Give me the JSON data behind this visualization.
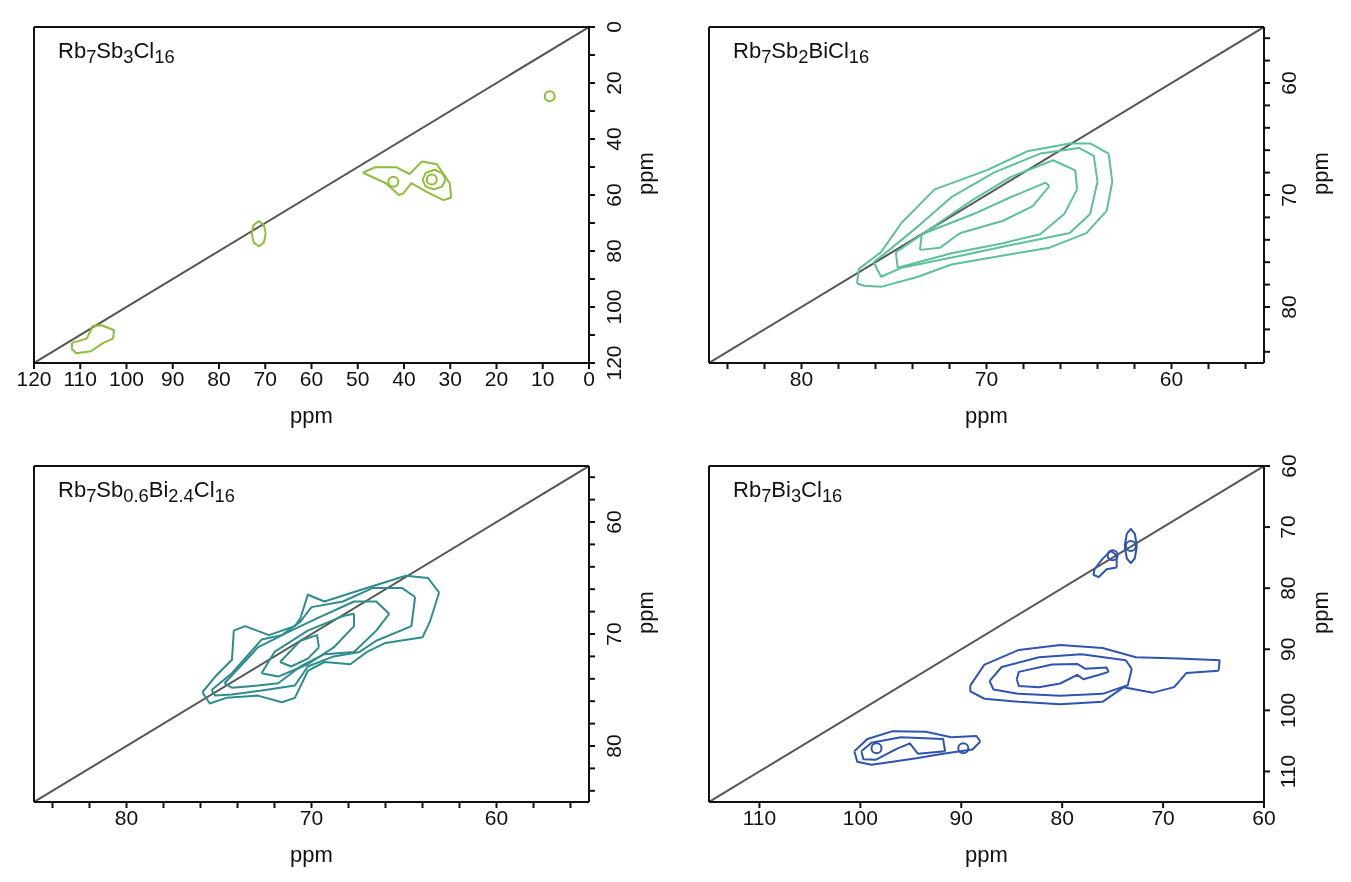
{
  "chart_data": [
    {
      "type": "line",
      "title": "Rb$_{7}$Sb$_{3}$Cl$_{16}$",
      "xlabel": "ppm",
      "ylabel": "ppm",
      "marker": "none",
      "line_style": "solid",
      "xlim": [
        120,
        0
      ],
      "ylim": [
        120,
        0
      ],
      "xticks": [
        120,
        110,
        100,
        90,
        80,
        70,
        60,
        50,
        40,
        30,
        20,
        10,
        0
      ],
      "yticks": [
        0,
        {
          "value": 10,
          "label": null
        },
        20,
        {
          "value": 30,
          "label": null
        },
        40,
        {
          "value": 50,
          "label": null
        },
        60,
        {
          "value": 70,
          "label": null
        },
        80,
        {
          "value": 90,
          "label": null
        },
        100,
        {
          "value": 110,
          "label": null
        },
        120
      ],
      "series": [
        {
          "color": "#555555",
          "x": [
            120,
            0
          ],
          "values": [
            120,
            0
          ]
        },
        {
          "type": "scatter",
          "marker": "circle",
          "color": "#8cbe3c",
          "x": [
            8.5,
            34,
            42.3
          ],
          "values": [
            24.7,
            54.5,
            55.3
          ]
        },
        {
          "color": "#8cbe3c",
          "x": [
            72.9,
            72.5,
            71.4,
            70.3,
            69.9,
            null,
            69.9,
            70.3,
            71.4,
            72.5,
            72.9
          ],
          "values": [
            73.8,
            77,
            78.3,
            77,
            73.8,
            null,
            73.8,
            70.7,
            69.3,
            70.7,
            73.8
          ]
        },
        {
          "color": "#8cbe3c",
          "x": [
            48.9,
            46.2,
            41.6,
            38.8,
            36.1,
            32.9,
            30.1,
            29.8,
            null,
            29.8,
            31.5,
            35.2,
            38.4,
            40.2,
            41.1,
            43.9,
            48.9
          ],
          "values": [
            52,
            50.1,
            50.1,
            52.5,
            48,
            49,
            55.8,
            61,
            null,
            61,
            61.8,
            58.8,
            55.8,
            59.5,
            60,
            55.8,
            52
          ]
        },
        {
          "color": "#8cbe3c",
          "x": [
            36,
            35.3,
            33.5,
            31.8,
            31,
            null,
            31,
            31.8,
            33.5,
            35.3,
            36
          ],
          "values": [
            54.5,
            57,
            58,
            57,
            54.5,
            null,
            54.5,
            52.1,
            51,
            52.1,
            54.5
          ]
        },
        {
          "color": "#8cbe3c",
          "x": [
            111.8,
            108.6,
            107.3,
            105.4,
            102.7,
            102.9,
            null,
            102.9,
            105,
            107.7,
            110.9,
            111.8,
            111.8
          ],
          "values": [
            112.8,
            111.3,
            106.8,
            106.5,
            108.3,
            111.3,
            null,
            111.3,
            112.8,
            115.8,
            116.5,
            115,
            112.8
          ]
        }
      ]
    },
    {
      "type": "line",
      "title": "Rb$_{7}$Sb$_{2}$BiCl$_{16}$",
      "xlabel": "ppm",
      "ylabel": "ppm",
      "marker": "none",
      "line_style": "solid",
      "xlim": [
        85,
        55
      ],
      "ylim": [
        85,
        55
      ],
      "xticks": [
        {
          "value": 84,
          "label": null
        },
        {
          "value": 82,
          "label": null
        },
        80,
        {
          "value": 78,
          "label": null
        },
        {
          "value": 76,
          "label": null
        },
        {
          "value": 74,
          "label": null
        },
        {
          "value": 72,
          "label": null
        },
        70,
        {
          "value": 68,
          "label": null
        },
        {
          "value": 66,
          "label": null
        },
        {
          "value": 64,
          "label": null
        },
        {
          "value": 62,
          "label": null
        },
        60,
        {
          "value": 58,
          "label": null
        },
        {
          "value": 56,
          "label": null
        }
      ],
      "yticks": [
        {
          "value": 56,
          "label": null
        },
        {
          "value": 58,
          "label": null
        },
        60,
        {
          "value": 62,
          "label": null
        },
        {
          "value": 64,
          "label": null
        },
        {
          "value": 66,
          "label": null
        },
        {
          "value": 68,
          "label": null
        },
        70,
        {
          "value": 72,
          "label": null
        },
        {
          "value": 74,
          "label": null
        },
        {
          "value": 76,
          "label": null
        },
        {
          "value": 78,
          "label": null
        },
        80,
        {
          "value": 82,
          "label": null
        },
        {
          "value": 84,
          "label": null
        }
      ],
      "series": [
        {
          "color": "#555555",
          "x": [
            85,
            55
          ],
          "values": [
            85,
            55
          ]
        },
        {
          "color": "#5cc199",
          "x": [
            77,
            76.9,
            75.7,
            74.6,
            72.8,
            70,
            67.8,
            65.5,
            64.4,
            63.4,
            null,
            63.4,
            63.2,
            63.5,
            64.6,
            66.6,
            69.1,
            71.9,
            73.7,
            75.7,
            76.6,
            77
          ],
          "values": [
            77.9,
            76.6,
            75.1,
            72.5,
            69.5,
            67.8,
            66.1,
            65.4,
            65.4,
            66.3,
            null,
            66.3,
            68.8,
            71.4,
            73.4,
            74.7,
            75.4,
            76.2,
            77.3,
            78.2,
            78.1,
            77.9
          ]
        },
        {
          "color": "#5cc199",
          "x": [
            76.1,
            75.1,
            73.7,
            71.9,
            69.6,
            67.1,
            65,
            64.2,
            64,
            null,
            64,
            64.4,
            65.5,
            68.2,
            71.6,
            74.6,
            75.7,
            76.1
          ],
          "values": [
            76,
            74.7,
            72.8,
            70.2,
            68,
            66.3,
            65.8,
            66.5,
            68.8,
            null,
            68.8,
            71.7,
            73.4,
            74.3,
            75.5,
            76.5,
            77.3,
            76
          ]
        },
        {
          "color": "#5cc199",
          "x": [
            74.9,
            73.2,
            70.9,
            68.7,
            66.4,
            65.2,
            65.1,
            null,
            65.1,
            65.8,
            67.1,
            69.1,
            71.9,
            74.8,
            74.9
          ],
          "values": [
            75.1,
            73.2,
            70.6,
            68.4,
            66.9,
            67.8,
            69.5,
            null,
            69.5,
            71.7,
            73.5,
            74.3,
            75.2,
            76.5,
            75.1
          ]
        },
        {
          "color": "#5cc199",
          "x": [
            73.6,
            73.5,
            70.7,
            68.7,
            66.8,
            66.6,
            null,
            66.6,
            67.5,
            69.1,
            71.4,
            71.6,
            72.5,
            73.6
          ],
          "values": [
            74.9,
            73.5,
            71.7,
            70.2,
            68.9,
            69.2,
            null,
            69.2,
            71,
            72.3,
            73.4,
            73.6,
            74.7,
            74.9
          ]
        }
      ]
    },
    {
      "type": "line",
      "title": "Rb$_{7}$Sb$_{0.6}$Bi$_{2.4}$Cl$_{16}$",
      "xlabel": "ppm",
      "ylabel": "ppm",
      "marker": "none",
      "line_style": "solid",
      "xlim": [
        85,
        55
      ],
      "ylim": [
        85,
        55
      ],
      "xticks": [
        {
          "value": 84,
          "label": null
        },
        {
          "value": 82,
          "label": null
        },
        80,
        {
          "value": 78,
          "label": null
        },
        {
          "value": 76,
          "label": null
        },
        {
          "value": 74,
          "label": null
        },
        {
          "value": 72,
          "label": null
        },
        70,
        {
          "value": 68,
          "label": null
        },
        {
          "value": 66,
          "label": null
        },
        {
          "value": 64,
          "label": null
        },
        {
          "value": 62,
          "label": null
        },
        60,
        {
          "value": 58,
          "label": null
        },
        {
          "value": 56,
          "label": null
        }
      ],
      "yticks": [
        {
          "value": 56,
          "label": null
        },
        {
          "value": 58,
          "label": null
        },
        60,
        {
          "value": 62,
          "label": null
        },
        {
          "value": 64,
          "label": null
        },
        {
          "value": 66,
          "label": null
        },
        {
          "value": 68,
          "label": null
        },
        70,
        {
          "value": 72,
          "label": null
        },
        {
          "value": 74,
          "label": null
        },
        {
          "value": 76,
          "label": null
        },
        {
          "value": 78,
          "label": null
        },
        80,
        {
          "value": 82,
          "label": null
        },
        {
          "value": 84,
          "label": null
        }
      ],
      "series": [
        {
          "color": "#555555",
          "x": [
            85,
            55
          ],
          "values": [
            85,
            55
          ]
        },
        {
          "color": "#2e8c8c",
          "x": [
            75.9,
            75.2,
            74.3,
            74.2,
            73.6,
            72.3,
            70.9,
            70.6,
            70.2,
            69.3,
            67.4,
            64.9,
            63.7,
            63.1,
            null,
            63.1,
            63.6,
            64,
            66,
            67,
            67.9,
            69.3,
            70.2,
            70.9,
            71.6,
            72.9,
            74.6,
            75.5,
            75.9
          ],
          "values": [
            75.2,
            73.8,
            72.3,
            69.7,
            69.3,
            70.1,
            69.3,
            68.6,
            66.5,
            67.1,
            66.1,
            64.8,
            65,
            66.3,
            null,
            66.3,
            68.9,
            70.3,
            70.8,
            71.6,
            72.7,
            72.5,
            73.3,
            75.7,
            76.1,
            75.5,
            75.7,
            76.2,
            75.2
          ]
        },
        {
          "color": "#2e8c8c",
          "x": [
            75.4,
            74.3,
            72.7,
            71.6,
            70.6,
            70,
            68.3,
            66.7,
            65.1,
            64.4,
            null,
            64.4,
            64.6,
            66.5,
            67.4,
            68.8,
            70.2,
            70.9,
            72.5,
            74.3,
            75.2,
            75.4
          ],
          "values": [
            75,
            73.5,
            70.5,
            70.1,
            68.9,
            67.6,
            67.1,
            65.9,
            65.9,
            66.7,
            null,
            66.7,
            69.3,
            70.6,
            71.6,
            72,
            72.9,
            74.6,
            75,
            75.4,
            75.5,
            75
          ]
        },
        {
          "color": "#2e8c8c",
          "x": [
            74.7,
            72.9,
            71.1,
            69.7,
            67.7,
            66.5,
            65.8,
            null,
            65.8,
            66.5,
            67.7,
            69.3,
            70.6,
            71.8,
            72.9,
            74.3,
            74.7
          ],
          "values": [
            74.4,
            71.2,
            69.7,
            68.6,
            67.1,
            67.1,
            68.2,
            null,
            68.2,
            69.7,
            71.6,
            71.8,
            72.9,
            74.4,
            74.6,
            74.8,
            74.4
          ]
        },
        {
          "color": "#2e8c8c",
          "x": [
            72.7,
            72,
            70.2,
            68.3,
            67.7,
            null,
            67.7,
            67.7,
            68.8,
            70.2,
            71.8,
            72.7
          ],
          "values": [
            73.5,
            71.6,
            69.7,
            68.4,
            68.2,
            null,
            68.2,
            69.3,
            71.2,
            72.7,
            73.8,
            73.5
          ]
        },
        {
          "color": "#2e8c8c",
          "x": [
            71.7,
            70.6,
            69.7,
            69.6,
            null,
            69.6,
            70.2,
            71.1,
            71.7
          ],
          "values": [
            72.5,
            70.6,
            70.1,
            71.2,
            null,
            71.2,
            72.2,
            72.9,
            72.5
          ]
        }
      ]
    },
    {
      "type": "line",
      "title": "Rb$_{7}$Bi$_{3}$Cl$_{16}$",
      "xlabel": "ppm",
      "ylabel": "ppm",
      "marker": "none",
      "line_style": "solid",
      "xlim": [
        115,
        60
      ],
      "ylim": [
        115,
        60
      ],
      "xticks": [
        110,
        100,
        90,
        80,
        70,
        60
      ],
      "yticks": [
        60,
        70,
        80,
        90,
        100,
        110
      ],
      "series": [
        {
          "color": "#555555",
          "x": [
            115,
            60
          ],
          "values": [
            115,
            60
          ]
        },
        {
          "color": "#2f54b0",
          "x": [
            89.1,
            87.7,
            84.3,
            80.2,
            76,
            72.7,
            68.5,
            64.4,
            64.5,
            null,
            64.5,
            67.7,
            68.9,
            71,
            73.9,
            76,
            80.2,
            84.3,
            87.7,
            89.1,
            89.1
          ],
          "values": [
            95.9,
            92.5,
            90.1,
            89.3,
            89.8,
            91.3,
            91.5,
            91.8,
            93.5,
            null,
            93.5,
            93.9,
            96.2,
            97.1,
            96.2,
            98.6,
            99,
            98.6,
            98.1,
            96.9,
            95.9
          ]
        },
        {
          "color": "#2f54b0",
          "x": [
            87.2,
            86,
            82.3,
            78.1,
            73.7,
            73.1,
            null,
            73.1,
            73.5,
            76,
            80.2,
            84.3,
            86.8,
            87.2
          ],
          "values": [
            95.2,
            92.9,
            91.3,
            90.8,
            91.8,
            93.2,
            null,
            93.2,
            95.9,
            97.3,
            97.6,
            97.3,
            96.6,
            95.2
          ]
        },
        {
          "color": "#2f54b0",
          "x": [
            84.5,
            84.3,
            81,
            78.5,
            77.7,
            75.6,
            75.4,
            null,
            75.4,
            76.4,
            77.9,
            78.5,
            80.2,
            82.3,
            84.3,
            84.5
          ],
          "values": [
            94.9,
            93.7,
            92.5,
            92.4,
            93.2,
            93,
            93.7,
            null,
            93.7,
            94.2,
            94.9,
            94.2,
            95.6,
            96.2,
            96,
            94.9
          ]
        },
        {
          "color": "#2f54b0",
          "x": [
            100.6,
            99.3,
            96.8,
            93.5,
            91,
            88.5,
            88.1,
            null,
            88.1,
            88.9,
            91.8,
            94.3,
            96.8,
            98.9,
            100.3,
            100.6
          ],
          "values": [
            106.7,
            104.7,
            103.4,
            103.5,
            104.4,
            104.2,
            105.1,
            null,
            105.1,
            106.4,
            107.1,
            107.8,
            108.4,
            108.9,
            108.4,
            106.7
          ]
        },
        {
          "color": "#2f54b0",
          "x": [
            99.9,
            98.9,
            96,
            91.8,
            91.6,
            null,
            91.6,
            94.3,
            95.1,
            96.4,
            98.5,
            99.7,
            99.9
          ],
          "values": [
            106.7,
            105.3,
            104.4,
            104.7,
            106.7,
            null,
            106.7,
            107.1,
            105.4,
            106.3,
            108.1,
            108,
            106.7
          ]
        },
        {
          "type": "scatter",
          "marker": "circle",
          "color": "#2f54b0",
          "x": [
            98.4,
            89.8,
            75,
            73.2
          ],
          "values": [
            106.2,
            106.2,
            74.6,
            73.1
          ]
        },
        {
          "color": "#2f54b0",
          "x": [
            73.8,
            73.6,
            73.2,
            72.8,
            72.6,
            null,
            72.6,
            72.8,
            73.2,
            73.6,
            73.8
          ],
          "values": [
            73.1,
            75.1,
            75.9,
            75.1,
            73.1,
            null,
            73.1,
            71.1,
            70.3,
            71.1,
            73.1
          ]
        },
        {
          "color": "#2f54b0",
          "x": [
            76.8,
            76,
            75.2,
            74.6,
            74.6,
            null,
            74.6,
            75.6,
            76.4,
            76.9,
            76.8
          ],
          "values": [
            76.9,
            75.2,
            73.9,
            74.6,
            76.6,
            null,
            76.6,
            76.9,
            78.2,
            77.8,
            76.9
          ]
        }
      ]
    }
  ]
}
